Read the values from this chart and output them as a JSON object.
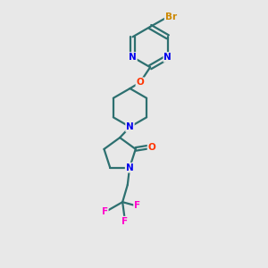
{
  "background_color": "#e8e8e8",
  "atom_colors": {
    "N": "#0000ee",
    "O": "#ff3300",
    "F": "#ff00cc",
    "Br": "#cc8800",
    "C": "#000000"
  },
  "bond_color": "#2d7070",
  "line_width": 1.6,
  "figsize": [
    3.0,
    3.0
  ],
  "dpi": 100
}
